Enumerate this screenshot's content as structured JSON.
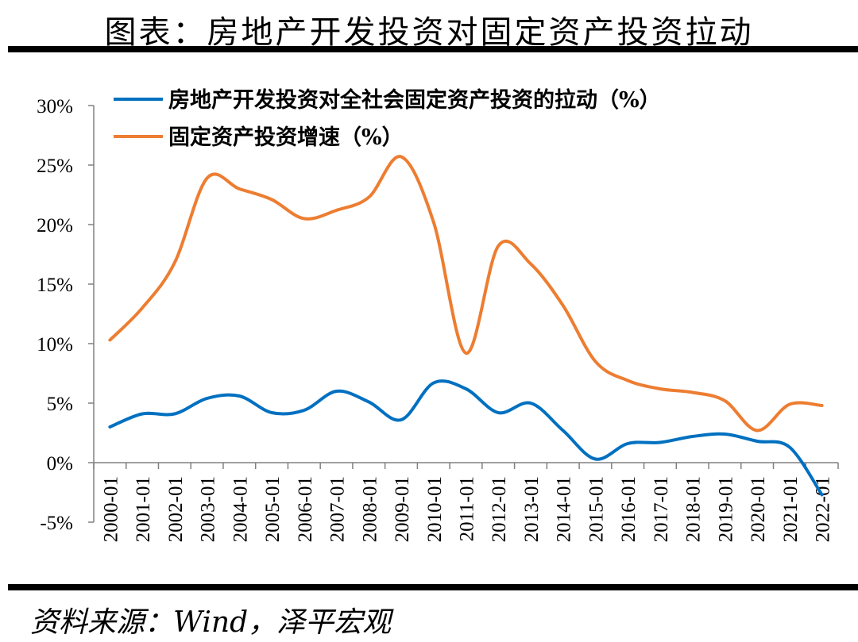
{
  "title": "图表：房地产开发投资对固定资产投资拉动",
  "source": "资料来源：Wind，泽平宏观",
  "chart_data": {
    "type": "line",
    "categories": [
      "2000-01",
      "2001-01",
      "2002-01",
      "2003-01",
      "2004-01",
      "2005-01",
      "2006-01",
      "2007-01",
      "2008-01",
      "2009-01",
      "2010-01",
      "2011-01",
      "2012-01",
      "2013-01",
      "2014-01",
      "2015-01",
      "2016-01",
      "2017-01",
      "2018-01",
      "2019-01",
      "2020-01",
      "2021-01",
      "2022-01"
    ],
    "y_ticks": [
      "30%",
      "25%",
      "20%",
      "15%",
      "10%",
      "5%",
      "0%",
      "-5%"
    ],
    "ylim": [
      -5,
      30
    ],
    "grid": false,
    "legend_position": "top-left",
    "series": [
      {
        "name": "房地产开发投资对全社会固定资产投资的拉动（%）",
        "color": "#0070C0",
        "values": [
          3.0,
          4.1,
          4.1,
          5.4,
          5.6,
          4.2,
          4.4,
          6.0,
          5.1,
          3.6,
          6.7,
          6.2,
          4.2,
          5.0,
          2.7,
          0.3,
          1.6,
          1.7,
          2.2,
          2.4,
          1.8,
          1.3,
          -2.7
        ]
      },
      {
        "name": "固定资产投资增速（%）",
        "color": "#ED7D31",
        "values": [
          10.3,
          13.0,
          16.8,
          23.9,
          23.0,
          22.1,
          20.5,
          21.2,
          22.3,
          25.7,
          20.2,
          9.2,
          18.2,
          16.7,
          13.2,
          8.5,
          6.9,
          6.2,
          5.9,
          5.2,
          2.7,
          4.9,
          4.8
        ]
      }
    ]
  }
}
